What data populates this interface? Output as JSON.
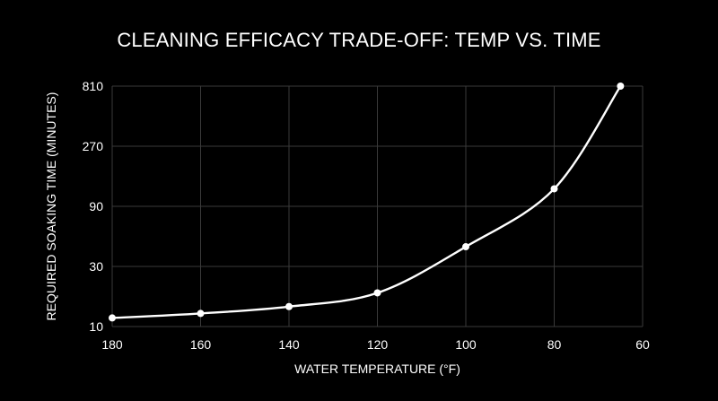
{
  "chart_data": {
    "type": "line",
    "title": "CLEANING EFFICACY TRADE-OFF: TEMP VS. TIME",
    "xlabel": "WATER TEMPERATURE (°F)",
    "ylabel": "REQUIRED SOAKING TIME (MINUTES)",
    "x_reversed": true,
    "y_scale": "log",
    "xlim": [
      180,
      60
    ],
    "ylim": [
      10,
      810
    ],
    "x_ticks": [
      180,
      160,
      140,
      120,
      100,
      80,
      60
    ],
    "y_ticks": [
      10,
      30,
      90,
      270,
      810
    ],
    "x_tick_labels": [
      "180",
      "160",
      "140",
      "120",
      "100",
      "80",
      "60"
    ],
    "y_tick_labels": [
      "10",
      "30",
      "90",
      "270",
      "810"
    ],
    "grid": true,
    "series": [
      {
        "x": [
          180,
          160,
          140,
          120,
          100,
          80,
          65
        ],
        "y": [
          11.7,
          12.7,
          14.4,
          18.5,
          43,
          124,
          810
        ]
      }
    ],
    "colors": {
      "background": "#000000",
      "line": "#ffffff",
      "grid": "#3a3a3a",
      "text": "#ffffff"
    }
  }
}
